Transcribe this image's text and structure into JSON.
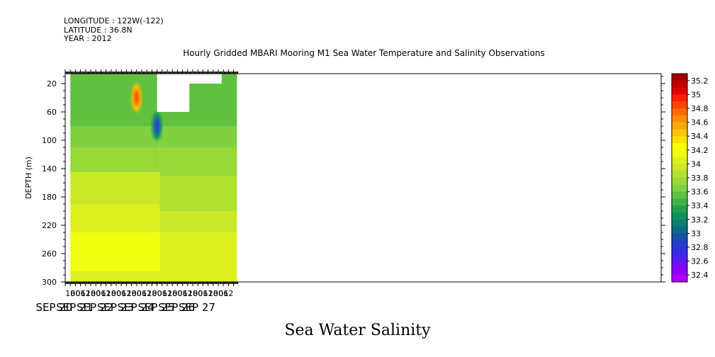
{
  "header": {
    "longitude": "LONGITUDE : 122W(-122)",
    "latitude": "LATITUDE : 36.8N",
    "year": "YEAR : 2012"
  },
  "plot_title": "Hourly Gridded MBARI Mooring M1 Sea Water Temperature and Salinity Observations",
  "variable_title": "Sea Water Salinity",
  "chart_data": {
    "type": "heatmap",
    "title": "Hourly Gridded MBARI Mooring M1 Sea Water Temperature and Salinity Observations",
    "variable": "Sea Water Salinity",
    "xlabel": "",
    "ylabel": "DEPTH (m)",
    "x_axis": {
      "start": "SEP 20 12:00",
      "end": "SEP 27 18:00",
      "hour_tick_labels": [
        "18",
        "00",
        "06",
        "12",
        "18",
        "00",
        "06",
        "12",
        "18",
        "00",
        "06",
        "12",
        "18",
        "00",
        "06",
        "12",
        "18",
        "00",
        "06",
        "12",
        "18",
        "00",
        "06",
        "12",
        "18",
        "00",
        "06",
        "12",
        "18",
        "00",
        "06",
        "12"
      ],
      "hour_ticks_h": [
        18,
        24,
        30,
        36,
        42,
        48,
        54,
        60,
        66,
        72,
        78,
        84,
        90,
        96,
        102,
        108,
        114,
        120,
        126,
        132,
        138,
        144,
        150,
        156,
        162,
        168,
        174,
        180,
        186,
        192,
        198,
        204
      ],
      "day_labels": [
        "SEP 20",
        "SEP 21",
        "SEP 22",
        "SEP 23",
        "SEP 24",
        "SEP 25",
        "SEP 26",
        "SEP 27"
      ],
      "day_label_h": [
        0,
        24,
        48,
        72,
        96,
        120,
        144,
        168
      ]
    },
    "y_axis": {
      "range": [
        6,
        300
      ],
      "reversed": true,
      "tick_labels": [
        "20",
        "60",
        "100",
        "140",
        "180",
        "220",
        "260",
        "300"
      ],
      "ticks": [
        20,
        60,
        100,
        140,
        180,
        220,
        260,
        300
      ]
    },
    "colorbar": {
      "labels": [
        "35.2",
        "35",
        "34.8",
        "34.6",
        "34.4",
        "34.2",
        "34",
        "33.8",
        "33.6",
        "33.4",
        "33.2",
        "33",
        "32.8",
        "32.6",
        "32.4"
      ],
      "levels": [
        35.3,
        35.2,
        35.1,
        35,
        34.9,
        34.8,
        34.7,
        34.6,
        34.5,
        34.4,
        34.3,
        34.2,
        34.1,
        34,
        33.9,
        33.8,
        33.7,
        33.6,
        33.5,
        33.4,
        33.3,
        33.2,
        33.1,
        33,
        32.9,
        32.8,
        32.7,
        32.6,
        32.5,
        32.4,
        32.3
      ],
      "colors": [
        "#a00000",
        "#c00000",
        "#e00000",
        "#ff2000",
        "#ff4400",
        "#ff6800",
        "#ff8c00",
        "#ffa800",
        "#ffc400",
        "#ffe000",
        "#ffff00",
        "#f0ff10",
        "#dcf020",
        "#c8e828",
        "#b0e030",
        "#98d838",
        "#80d040",
        "#60c040",
        "#40b048",
        "#20a050",
        "#109060",
        "#108070",
        "#106888",
        "#1850a8",
        "#2040c8",
        "#3030e0",
        "#5020f0",
        "#7010f8",
        "#9000ff",
        "#b000ff"
      ]
    },
    "missing_regions": [
      {
        "h_start": 12,
        "h_end": 18,
        "depth_start": 6,
        "depth_end": 300
      },
      {
        "h_start": 120,
        "h_end": 158,
        "depth_start": 6,
        "depth_end": 60
      },
      {
        "h_start": 158,
        "h_end": 196,
        "depth_start": 6,
        "depth_end": 20
      }
    ],
    "layers_before_sep25": [
      {
        "depth_start": 6,
        "depth_end": 30,
        "salinity": 33.55
      },
      {
        "depth_start": 30,
        "depth_end": 80,
        "salinity": 33.6
      },
      {
        "depth_start": 80,
        "depth_end": 110,
        "salinity": 33.7
      },
      {
        "depth_start": 110,
        "depth_end": 145,
        "salinity": 33.8
      },
      {
        "depth_start": 145,
        "depth_end": 190,
        "salinity": 33.95
      },
      {
        "depth_start": 190,
        "depth_end": 230,
        "salinity": 34.05
      },
      {
        "depth_start": 230,
        "depth_end": 285,
        "salinity": 34.2
      },
      {
        "depth_start": 285,
        "depth_end": 300,
        "salinity": 34.1
      }
    ],
    "layers_after_sep25": [
      {
        "depth_start": 6,
        "depth_end": 80,
        "salinity": 33.55
      },
      {
        "depth_start": 80,
        "depth_end": 110,
        "salinity": 33.65
      },
      {
        "depth_start": 110,
        "depth_end": 150,
        "salinity": 33.75
      },
      {
        "depth_start": 150,
        "depth_end": 200,
        "salinity": 33.85
      },
      {
        "depth_start": 200,
        "depth_end": 230,
        "salinity": 33.95
      },
      {
        "depth_start": 230,
        "depth_end": 250,
        "salinity": 34.05
      },
      {
        "depth_start": 250,
        "depth_end": 300,
        "salinity": 34.1
      }
    ],
    "anomalies": [
      {
        "h": 96,
        "depth": 40,
        "salinity": 34.9
      },
      {
        "h": 120,
        "depth": 80,
        "salinity": 32.9
      }
    ],
    "grid": false
  }
}
